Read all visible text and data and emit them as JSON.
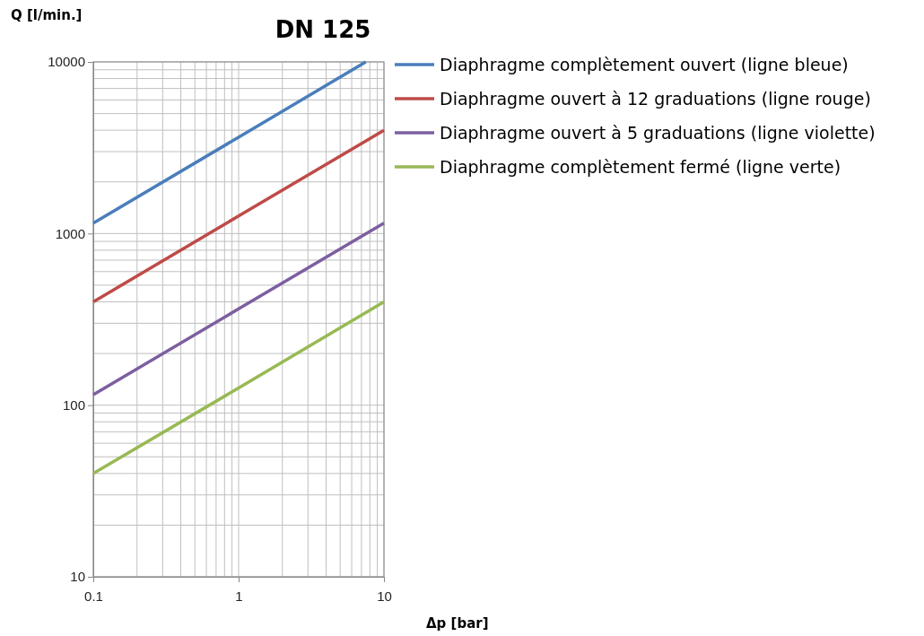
{
  "chart_data": {
    "type": "line",
    "title": "DN 125",
    "xlabel": "Δp [bar]",
    "ylabel": "Q [l/min.]",
    "log": "xy",
    "grid": true,
    "legend": "right",
    "marker": "none",
    "line_style": "solid",
    "xlim": [
      0.1,
      10
    ],
    "xticks": [
      0.1,
      1,
      10
    ],
    "ylim": [
      10,
      10000
    ],
    "yticks": [
      10,
      100,
      1000,
      10000
    ],
    "series": [
      {
        "name": "Diaphragme complètement ouvert (ligne bleue)",
        "color": "#4a7ebb",
        "x": [
          0.1,
          1,
          7.5
        ],
        "values": [
          1150,
          3640,
          10000
        ]
      },
      {
        "name": "Diaphragme ouvert à 12 graduations (ligne rouge)",
        "color": "#be4b48",
        "x": [
          0.1,
          1,
          10
        ],
        "values": [
          400,
          1265,
          4000
        ]
      },
      {
        "name": "Diaphragme ouvert à 5 graduations (ligne violette)",
        "color": "#7d5fa0",
        "x": [
          0.1,
          1,
          10
        ],
        "values": [
          115,
          364,
          1150
        ]
      },
      {
        "name": "Diaphragme complètement fermé (ligne verte)",
        "color": "#98b954",
        "x": [
          0.1,
          1,
          10
        ],
        "values": [
          40,
          126,
          400
        ]
      }
    ]
  }
}
